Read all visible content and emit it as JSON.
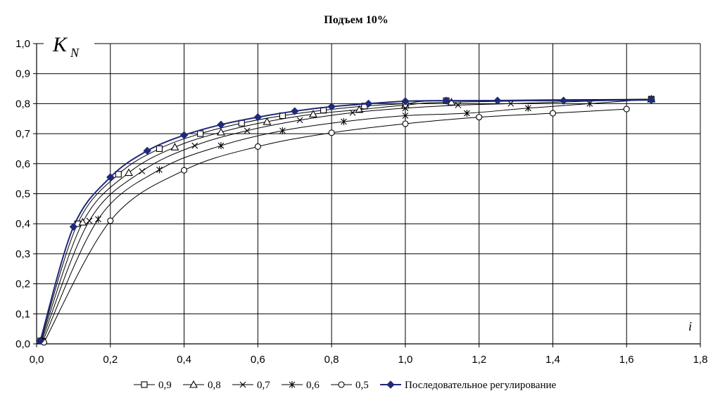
{
  "chart_data": {
    "type": "line",
    "title": "Подъем 10%",
    "xlabel": "i",
    "ylabel_main": "K",
    "ylabel_sub": "N",
    "xlim": [
      0,
      1.8
    ],
    "ylim": [
      0,
      1.0
    ],
    "x_ticks": [
      "0,0",
      "0,2",
      "0,4",
      "0,6",
      "0,8",
      "1,0",
      "1,2",
      "1,4",
      "1,6",
      "1,8"
    ],
    "y_ticks": [
      "0,0",
      "0,1",
      "0,2",
      "0,3",
      "0,4",
      "0,5",
      "0,6",
      "0,7",
      "0,8",
      "0,9",
      "1,0"
    ],
    "grid": true,
    "legend_position": "bottom",
    "series": [
      {
        "name": "0,9",
        "marker": "square",
        "color": "#000000",
        "x": [
          0.011,
          0.111,
          0.222,
          0.333,
          0.444,
          0.556,
          0.667,
          0.778,
          0.889,
          1.0,
          1.111,
          1.667
        ],
        "y": [
          0.01,
          0.4,
          0.565,
          0.65,
          0.7,
          0.735,
          0.76,
          0.778,
          0.792,
          0.8,
          0.81,
          0.815
        ]
      },
      {
        "name": "0,8",
        "marker": "triangle",
        "color": "#000000",
        "x": [
          0.012,
          0.125,
          0.25,
          0.375,
          0.5,
          0.625,
          0.75,
          0.875,
          1.0,
          1.125,
          1.667
        ],
        "y": [
          0.01,
          0.405,
          0.57,
          0.655,
          0.705,
          0.74,
          0.765,
          0.78,
          0.795,
          0.805,
          0.815
        ]
      },
      {
        "name": "0,7",
        "marker": "cross",
        "color": "#000000",
        "x": [
          0.014,
          0.143,
          0.286,
          0.429,
          0.571,
          0.714,
          0.857,
          1.0,
          1.143,
          1.286,
          1.667
        ],
        "y": [
          0.01,
          0.41,
          0.575,
          0.66,
          0.71,
          0.745,
          0.77,
          0.785,
          0.795,
          0.8,
          0.815
        ]
      },
      {
        "name": "0,6",
        "marker": "asterisk",
        "color": "#000000",
        "x": [
          0.017,
          0.167,
          0.333,
          0.5,
          0.667,
          0.833,
          1.0,
          1.167,
          1.333,
          1.5,
          1.667
        ],
        "y": [
          0.01,
          0.415,
          0.58,
          0.66,
          0.71,
          0.74,
          0.76,
          0.768,
          0.785,
          0.8,
          0.815
        ]
      },
      {
        "name": "0,5",
        "marker": "circle",
        "color": "#000000",
        "x": [
          0.02,
          0.2,
          0.4,
          0.6,
          0.8,
          1.0,
          1.2,
          1.4,
          1.6
        ],
        "y": [
          0.005,
          0.41,
          0.578,
          0.657,
          0.703,
          0.733,
          0.755,
          0.768,
          0.782
        ]
      },
      {
        "name": "Последовательное регулирование",
        "marker": "diamond",
        "color": "#1f2a7a",
        "x": [
          0.01,
          0.1,
          0.2,
          0.3,
          0.4,
          0.5,
          0.6,
          0.7,
          0.8,
          0.9,
          1.0,
          1.111,
          1.25,
          1.429,
          1.667
        ],
        "y": [
          0.01,
          0.39,
          0.555,
          0.643,
          0.695,
          0.73,
          0.755,
          0.775,
          0.79,
          0.8,
          0.808,
          0.81,
          0.81,
          0.81,
          0.812
        ]
      }
    ]
  }
}
